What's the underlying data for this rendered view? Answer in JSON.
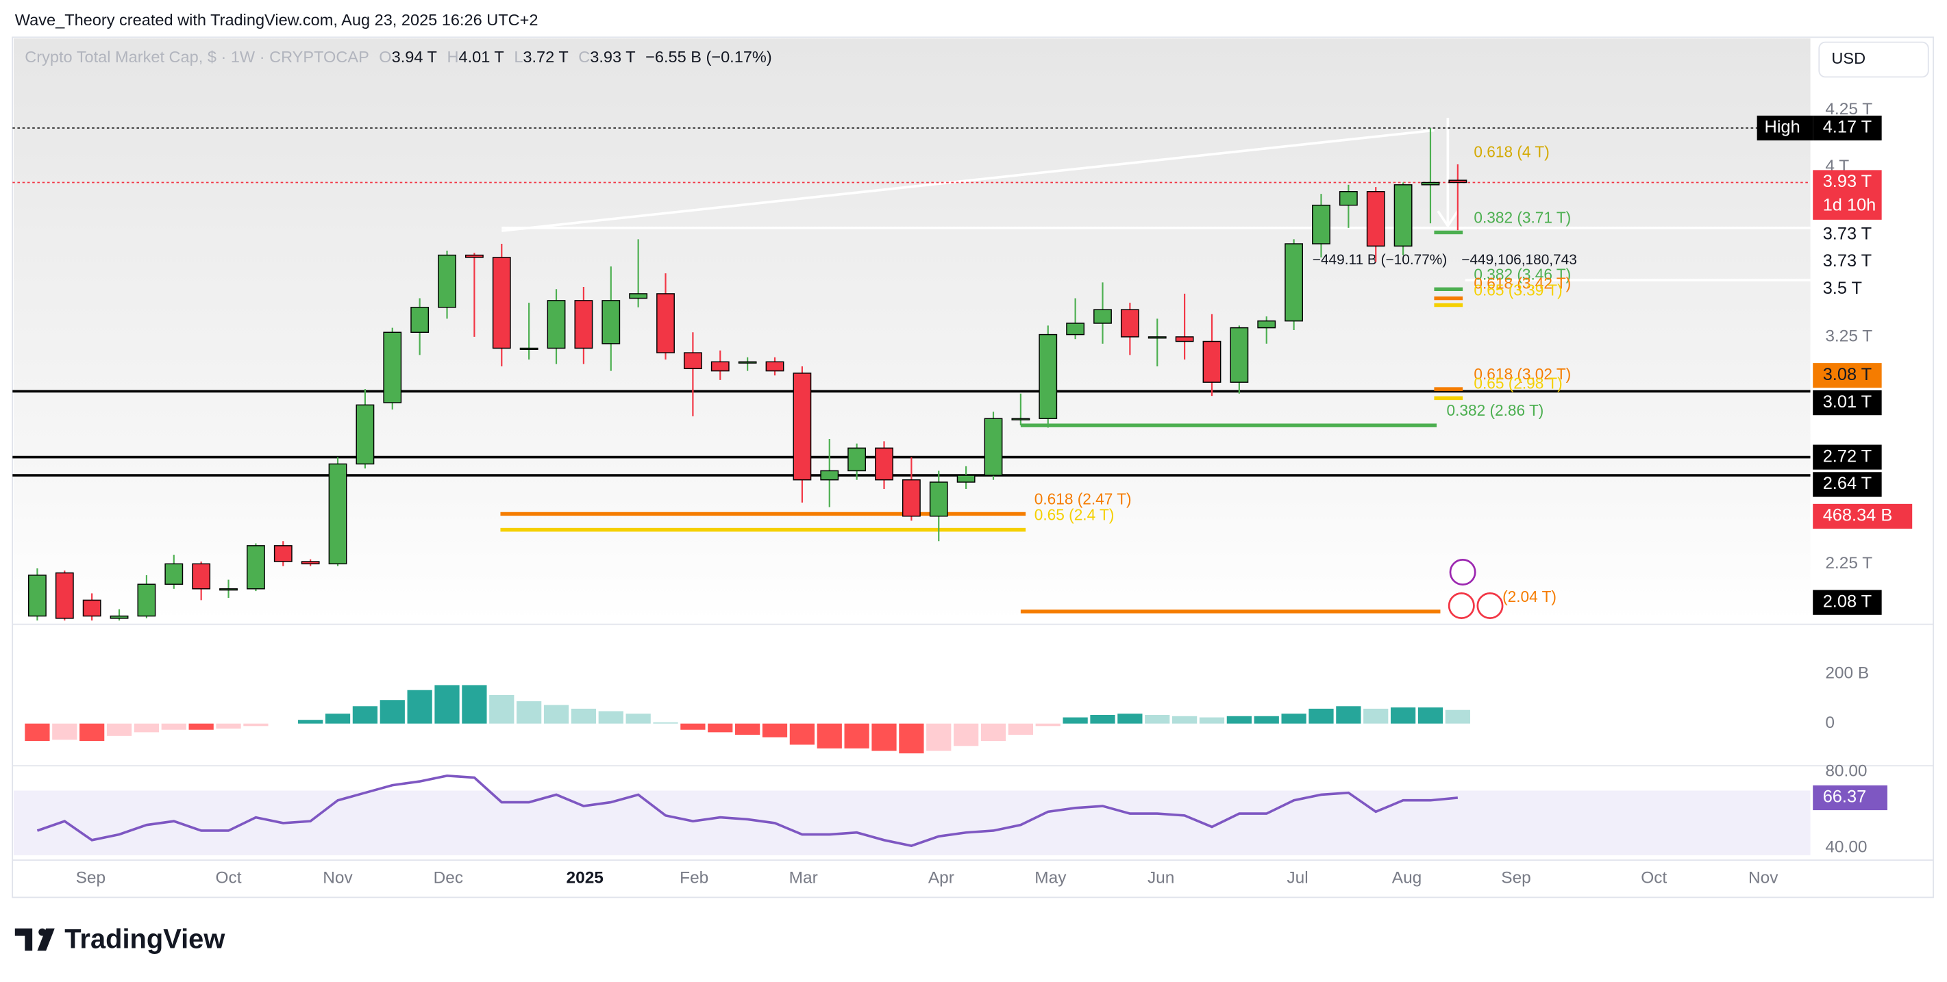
{
  "header": {
    "credit": "Wave_Theory created with TradingView.com, Aug 23, 2025 16:26 UTC+2",
    "symbol": "Crypto Total Market Cap, $ · 1W · CRYPTOCAP",
    "ohlc": [
      {
        "key": "O",
        "value": "3.94 T"
      },
      {
        "key": "H",
        "value": "4.01 T"
      },
      {
        "key": "L",
        "value": "3.72 T"
      },
      {
        "key": "C",
        "value": "3.93 T"
      }
    ],
    "change": "−6.55 B (−0.17%)",
    "currency": "USD"
  },
  "chart_data": {
    "type": "candlestick",
    "open": [
      2.02,
      2.21,
      2.09,
      2.01,
      2.02,
      2.16,
      2.25,
      2.14,
      2.14,
      2.33,
      2.26,
      2.25,
      2.69,
      2.96,
      3.27,
      3.38,
      3.61,
      3.6,
      3.2,
      3.2,
      3.41,
      3.22,
      3.42,
      3.44,
      3.18,
      3.14,
      3.14,
      3.14,
      3.09,
      2.62,
      2.66,
      2.76,
      2.62,
      2.46,
      2.61,
      2.64,
      2.89,
      2.89,
      3.26,
      3.31,
      3.37,
      3.25,
      3.25,
      3.23,
      3.05,
      3.29,
      3.32,
      3.66,
      3.83,
      3.89,
      3.65,
      3.92,
      3.94
    ],
    "high": [
      2.23,
      2.22,
      2.12,
      2.05,
      2.2,
      2.29,
      2.26,
      2.18,
      2.34,
      2.35,
      2.27,
      2.72,
      3.02,
      3.29,
      3.42,
      3.63,
      3.62,
      3.66,
      3.4,
      3.46,
      3.47,
      3.56,
      3.68,
      3.53,
      3.27,
      3.19,
      3.16,
      3.16,
      3.12,
      2.8,
      2.78,
      2.79,
      2.72,
      2.66,
      2.68,
      2.92,
      3.0,
      3.3,
      3.42,
      3.49,
      3.4,
      3.33,
      3.44,
      3.35,
      3.3,
      3.34,
      3.68,
      3.88,
      3.92,
      3.91,
      3.93,
      4.17,
      4.01
    ],
    "low": [
      2.0,
      2.0,
      2.0,
      2.0,
      2.01,
      2.14,
      2.09,
      2.1,
      2.13,
      2.24,
      2.24,
      2.24,
      2.67,
      2.93,
      3.17,
      3.33,
      3.25,
      3.12,
      3.15,
      3.13,
      3.13,
      3.1,
      3.38,
      3.15,
      2.9,
      3.06,
      3.1,
      3.08,
      2.52,
      2.5,
      2.62,
      2.58,
      2.44,
      2.35,
      2.58,
      2.62,
      2.86,
      2.85,
      3.24,
      3.22,
      3.17,
      3.12,
      3.15,
      2.99,
      3.0,
      3.22,
      3.28,
      3.6,
      3.73,
      3.58,
      3.61,
      3.75,
      3.72
    ],
    "close": [
      2.2,
      2.01,
      2.02,
      2.02,
      2.16,
      2.25,
      2.14,
      2.14,
      2.33,
      2.26,
      2.25,
      2.69,
      2.95,
      3.27,
      3.38,
      3.61,
      3.6,
      3.2,
      3.2,
      3.41,
      3.2,
      3.41,
      3.44,
      3.18,
      3.11,
      3.1,
      3.14,
      3.1,
      2.62,
      2.66,
      2.76,
      2.62,
      2.46,
      2.61,
      2.64,
      2.89,
      2.89,
      3.26,
      3.31,
      3.37,
      3.25,
      3.25,
      3.23,
      3.05,
      3.29,
      3.32,
      3.66,
      3.83,
      3.89,
      3.65,
      3.92,
      3.93,
      3.93
    ],
    "up_color": "#4caf50",
    "down_color": "#f23645",
    "ylim": [
      2.0,
      4.57
    ],
    "yticks": [
      {
        "value": 4.25,
        "label": "4.25 T"
      },
      {
        "value": 4,
        "label": "4 T"
      },
      {
        "value": 3.25,
        "label": "3.25 T"
      },
      {
        "value": 2.25,
        "label": "2.25 T"
      }
    ],
    "price_labels": [
      {
        "value": 4.17,
        "label": "4.17 T",
        "tag": "High",
        "bg": "#000000",
        "fg": "#ffffff",
        "line": "dotted",
        "line_color": "#333333"
      },
      {
        "value": 3.93,
        "label": "3.93 T",
        "sub": "1d 10h",
        "bg": "#f23645",
        "fg": "#ffffff",
        "line": "dotted",
        "line_color": "#f23645"
      },
      {
        "value": 3.73,
        "label": "3.73 T",
        "bg": "#ffffff",
        "fg": "#131722",
        "line": "solid",
        "line_color": "#ffffff"
      },
      {
        "value": 3.73,
        "label": "3.73 T",
        "bg": "#ffffff",
        "fg": "#131722"
      },
      {
        "value": 3.5,
        "label": "3.5 T",
        "bg": "#ffffff",
        "fg": "#131722",
        "line": "solid",
        "line_color": "#ffffff"
      },
      {
        "value": 3.08,
        "label": "3.08 T",
        "bg": "#f57c00",
        "fg": "#131722"
      },
      {
        "value": 3.01,
        "label": "3.01 T",
        "bg": "#000000",
        "fg": "#ffffff",
        "line": "solid",
        "line_color": "#000000"
      },
      {
        "value": 2.72,
        "label": "2.72 T",
        "bg": "#000000",
        "fg": "#ffffff",
        "line": "solid",
        "line_color": "#000000"
      },
      {
        "value": 2.64,
        "label": "2.64 T",
        "bg": "#000000",
        "fg": "#ffffff",
        "line": "solid",
        "line_color": "#000000"
      },
      {
        "value": 2.08,
        "label": "2.08 T",
        "bg": "#000000",
        "fg": "#ffffff"
      }
    ],
    "fib_levels": [
      {
        "label": "0.618 (4 T)",
        "value": 4,
        "color": "#d4a900"
      },
      {
        "label": "0.382 (3.71 T)",
        "value": 3.71,
        "color": "#4caf50"
      },
      {
        "label": "0.382 (3.46 T)",
        "value": 3.46,
        "color": "#4caf50"
      },
      {
        "label": "0.618 (3.42 T)",
        "value": 3.42,
        "color": "#f57c00"
      },
      {
        "label": "0.65 (3.39 T)",
        "value": 3.39,
        "color": "#f5d000"
      },
      {
        "label": "0.618 (3.02 T)",
        "value": 3.02,
        "color": "#f57c00"
      },
      {
        "label": "0.65 (2.98 T)",
        "value": 2.98,
        "color": "#f5d000"
      },
      {
        "label": "0.382 (2.86 T)",
        "value": 2.86,
        "color": "#4caf50"
      },
      {
        "label": "0.618 (2.47 T)",
        "value": 2.47,
        "color": "#f57c00"
      },
      {
        "label": "0.65 (2.4 T)",
        "value": 2.4,
        "color": "#f5d000"
      },
      {
        "label": "(2.04 T)",
        "value": 2.04,
        "color": "#f57c00"
      }
    ],
    "measure": [
      "−449.11 B (−10.77%)",
      "−449,106,180,743"
    ],
    "volume_label": "468.34 B",
    "macd": {
      "type": "bar",
      "values": [
        -70,
        -65,
        -70,
        -50,
        -35,
        -25,
        -25,
        -20,
        -10,
        0,
        15,
        40,
        70,
        95,
        135,
        155,
        155,
        115,
        90,
        75,
        60,
        50,
        40,
        5,
        -25,
        -35,
        -45,
        -55,
        -85,
        -100,
        -100,
        -110,
        -120,
        -110,
        -90,
        -70,
        -45,
        -10,
        25,
        35,
        40,
        35,
        30,
        25,
        30,
        30,
        40,
        60,
        70,
        60,
        65,
        65,
        55
      ],
      "ylim": [
        -160,
        390
      ],
      "yticks": [
        0,
        {
          "value": 200,
          "label": "200 B"
        }
      ]
    },
    "rsi": {
      "type": "line",
      "color": "#7e57c2",
      "values": [
        49,
        54,
        44,
        47,
        52,
        54,
        49,
        49,
        56,
        53,
        54,
        65,
        69,
        73,
        75,
        78,
        77,
        64,
        64,
        68,
        62,
        64,
        68,
        57,
        54,
        56,
        55,
        53,
        47,
        47,
        48,
        44,
        41,
        46,
        48,
        49,
        52,
        59,
        61,
        62,
        58,
        58,
        57,
        51,
        58,
        58,
        65,
        68,
        69,
        59,
        65,
        65,
        66.37
      ],
      "ylim": [
        35.4,
        82.6
      ],
      "yticks": [
        {
          "value": 80,
          "label": "80.00"
        },
        {
          "value": 40,
          "label": "40.00"
        }
      ],
      "last": 66.37
    },
    "time_axis": [
      "Sep",
      "Oct",
      "Nov",
      "Dec",
      "2025",
      "Feb",
      "Mar",
      "Apr",
      "May",
      "Jun",
      "Jul",
      "Aug",
      "Sep",
      "Oct",
      "Nov"
    ]
  },
  "footer": {
    "brand": "TradingView"
  }
}
